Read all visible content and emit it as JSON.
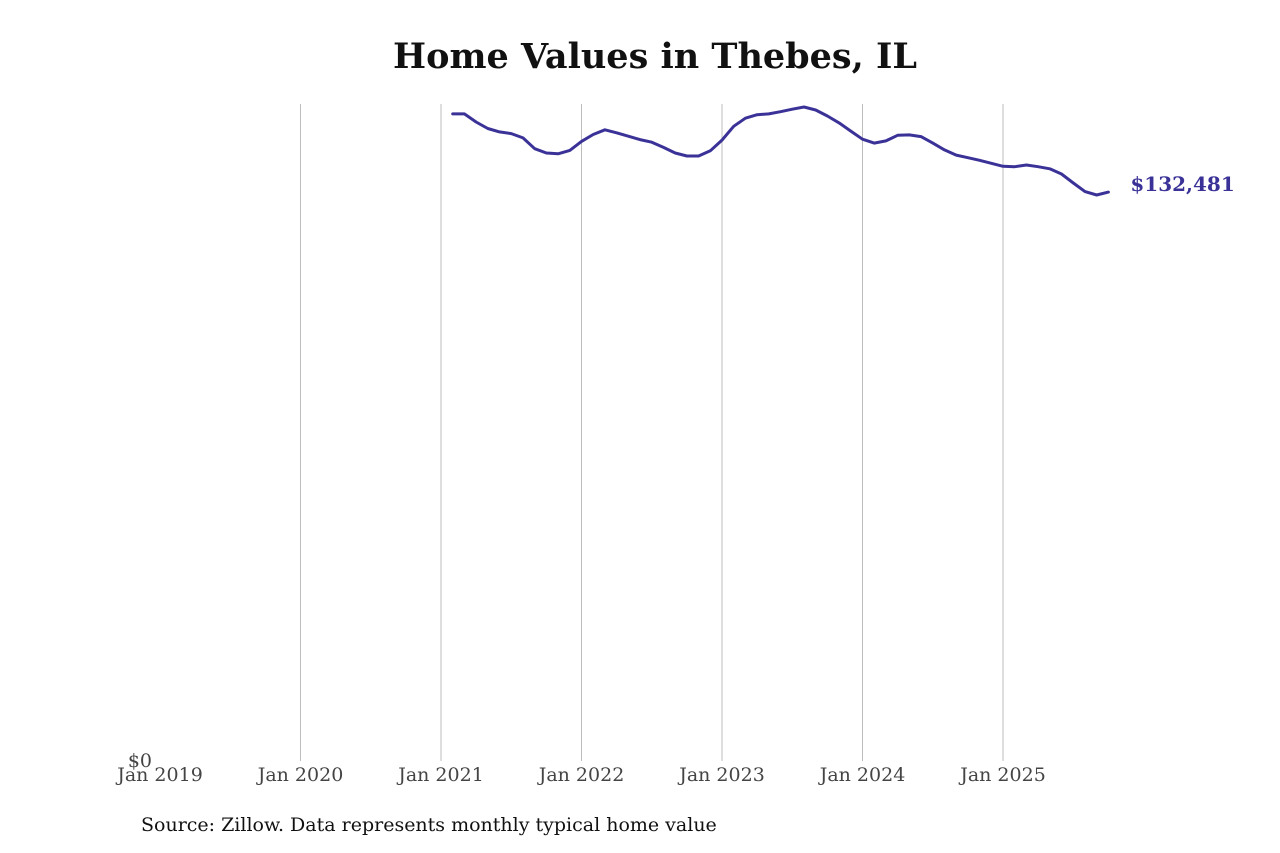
{
  "chart_data": {
    "type": "line",
    "title": "Home Values in Thebes, IL",
    "xlabel": "",
    "ylabel": "",
    "x_ticks": [
      "Jan 2019",
      "Jan 2020",
      "Jan 2021",
      "Jan 2022",
      "Jan 2023",
      "Jan 2024",
      "Jan 2025"
    ],
    "y_ticks": [
      "$0"
    ],
    "xlim": [
      "2019-01",
      "2025-12"
    ],
    "ylim": [
      0,
      153000
    ],
    "grid": "vertical",
    "end_label": "$132,481",
    "line_color": "#3b3298",
    "series": [
      {
        "x": [
          "2021-02",
          "2021-03",
          "2021-04",
          "2021-05",
          "2021-06",
          "2021-07",
          "2021-08",
          "2021-09",
          "2021-10",
          "2021-11",
          "2021-12",
          "2022-01",
          "2022-02",
          "2022-03",
          "2022-04",
          "2022-05",
          "2022-06",
          "2022-07",
          "2022-08",
          "2022-09",
          "2022-10",
          "2022-11",
          "2022-12",
          "2023-01",
          "2023-02",
          "2023-03",
          "2023-04",
          "2023-05",
          "2023-06",
          "2023-07",
          "2023-08",
          "2023-09",
          "2023-10",
          "2023-11",
          "2023-12",
          "2024-01",
          "2024-02",
          "2024-03",
          "2024-04",
          "2024-05",
          "2024-06",
          "2024-07",
          "2024-08",
          "2024-09",
          "2024-10",
          "2024-11",
          "2024-12",
          "2025-01",
          "2025-02",
          "2025-03",
          "2025-04",
          "2025-05",
          "2025-06",
          "2025-07",
          "2025-08",
          "2025-09",
          "2025-10"
        ],
        "values": [
          150700,
          150700,
          148800,
          147300,
          146500,
          146100,
          145100,
          142600,
          141600,
          141400,
          142200,
          144300,
          145900,
          147000,
          146300,
          145500,
          144700,
          144100,
          142900,
          141600,
          140900,
          140900,
          142100,
          144600,
          147800,
          149700,
          150500,
          150700,
          151200,
          151800,
          152300,
          151600,
          150200,
          148600,
          146700,
          144800,
          143900,
          144400,
          145700,
          145800,
          145400,
          143900,
          142300,
          141100,
          140500,
          139900,
          139200,
          138500,
          138400,
          138800,
          138400,
          137900,
          136700,
          134600,
          132600,
          131800,
          132481
        ]
      }
    ]
  },
  "source": "Source: Zillow. Data represents monthly typical home value"
}
